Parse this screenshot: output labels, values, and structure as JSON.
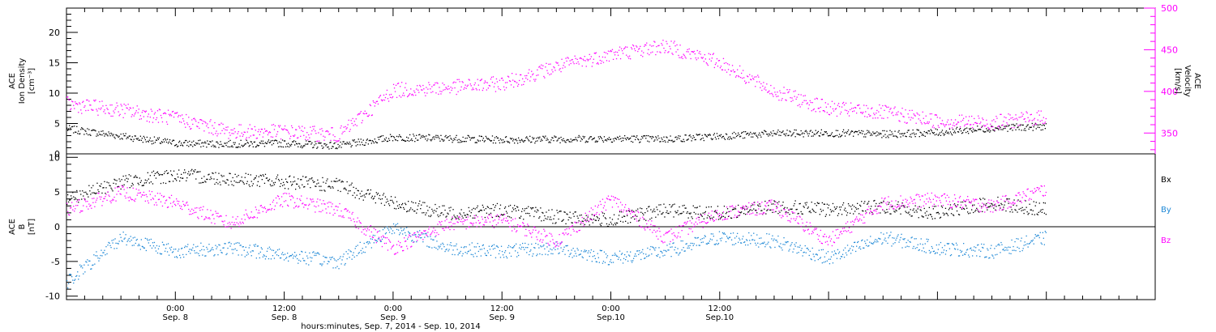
{
  "chart_data": [
    {
      "type": "scatter",
      "panel": "top",
      "ylabel_left": [
        "ACE",
        "Ion Density",
        "[cm⁻³]"
      ],
      "ylabel_right": [
        "ACE",
        "Velocity",
        "[km/s]"
      ],
      "ylim_left": [
        0,
        24
      ],
      "ylim_right": [
        325,
        500
      ],
      "yticks_left": [
        "0",
        "5",
        "10",
        "15",
        "20"
      ],
      "yticks_right": [
        "350",
        "400",
        "450",
        "500"
      ],
      "series": [
        {
          "key": "density",
          "axis": "left",
          "color": "#000000",
          "x_hours": [
            0,
            6,
            12,
            18,
            24,
            30,
            36,
            42,
            48,
            54,
            60,
            66,
            72,
            78,
            84,
            90,
            96,
            102,
            108
          ],
          "values": [
            4.2,
            3.0,
            1.8,
            1.7,
            1.8,
            1.4,
            2.8,
            2.6,
            2.4,
            2.5,
            2.6,
            2.5,
            3.0,
            3.4,
            3.5,
            3.3,
            3.6,
            4.3,
            4.6
          ]
        },
        {
          "key": "velocity",
          "axis": "right",
          "color": "#ff00ff",
          "x_hours": [
            0,
            6,
            12,
            18,
            24,
            30,
            36,
            42,
            48,
            54,
            60,
            66,
            72,
            78,
            84,
            90,
            96,
            102,
            108
          ],
          "values": [
            385,
            378,
            368,
            352,
            352,
            348,
            402,
            405,
            410,
            430,
            445,
            455,
            435,
            400,
            380,
            375,
            365,
            363,
            370
          ]
        }
      ]
    },
    {
      "type": "scatter",
      "panel": "bottom",
      "ylabel_left": [
        "ACE",
        "B",
        "[nT]"
      ],
      "ylim": [
        -10.5,
        10.5
      ],
      "yticks": [
        "-10",
        "-5",
        "0",
        "5",
        "10"
      ],
      "legend_position": "right",
      "series": [
        {
          "name": "Bx",
          "color": "#000000",
          "x_hours": [
            0,
            6,
            12,
            18,
            24,
            30,
            36,
            42,
            48,
            54,
            60,
            66,
            72,
            78,
            84,
            90,
            96,
            102,
            108
          ],
          "values": [
            4.0,
            6.5,
            7.5,
            7.0,
            6.5,
            6.0,
            3.5,
            2.0,
            2.5,
            1.5,
            1.0,
            2.5,
            2.0,
            3.0,
            2.5,
            3.0,
            2.0,
            3.5,
            2.5
          ]
        },
        {
          "name": "By",
          "color": "#1e88d6",
          "x_hours": [
            0,
            6,
            12,
            18,
            24,
            30,
            36,
            42,
            48,
            54,
            60,
            66,
            72,
            78,
            84,
            90,
            96,
            102,
            108
          ],
          "values": [
            -8.0,
            -1.5,
            -3.5,
            -3.0,
            -4.0,
            -5.0,
            0.0,
            -3.0,
            -3.5,
            -3.0,
            -4.5,
            -3.5,
            -1.5,
            -2.0,
            -4.5,
            -1.5,
            -3.0,
            -3.5,
            -1.5
          ]
        },
        {
          "name": "Bz",
          "color": "#ff00ff",
          "x_hours": [
            0,
            6,
            12,
            18,
            24,
            30,
            36,
            42,
            48,
            54,
            60,
            66,
            72,
            78,
            84,
            90,
            96,
            102,
            108
          ],
          "values": [
            2.5,
            5.0,
            3.5,
            0.5,
            4.0,
            2.5,
            -3.0,
            0.5,
            1.0,
            -2.0,
            4.0,
            -1.5,
            2.0,
            3.0,
            -2.0,
            3.5,
            4.0,
            3.0,
            5.5
          ]
        }
      ]
    }
  ],
  "x_axis": {
    "range_hours": [
      0,
      120
    ],
    "ticks": [
      {
        "hours": 12,
        "time": "0:00",
        "date": "Sep. 8"
      },
      {
        "hours": 24,
        "time": "12:00",
        "date": "Sep. 8"
      },
      {
        "hours": 36,
        "time": "0:00",
        "date": "Sep. 9"
      },
      {
        "hours": 48,
        "time": "12:00",
        "date": "Sep. 9"
      },
      {
        "hours": 60,
        "time": "0:00",
        "date": "Sep.10"
      },
      {
        "hours": 72,
        "time": "12:00",
        "date": "Sep.10"
      }
    ],
    "label": "hours:minutes, Sep.  7, 2014 - Sep. 10, 2014"
  },
  "legend_labels": {
    "bx": "Bx",
    "by": "By",
    "bz": "Bz"
  }
}
